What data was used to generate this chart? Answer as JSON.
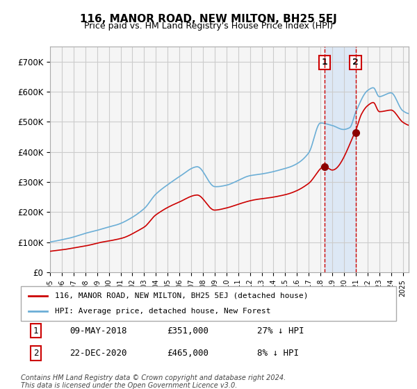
{
  "title": "116, MANOR ROAD, NEW MILTON, BH25 5EJ",
  "subtitle": "Price paid vs. HM Land Registry's House Price Index (HPI)",
  "hpi_color": "#6baed6",
  "price_color": "#cc0000",
  "point_color": "#8b0000",
  "bg_color": "#ffffff",
  "plot_bg_color": "#f5f5f5",
  "grid_color": "#cccccc",
  "highlight_bg": "#dde8f5",
  "dashed_color": "#cc0000",
  "ylim": [
    0,
    750000
  ],
  "yticks": [
    0,
    100000,
    200000,
    300000,
    400000,
    500000,
    600000,
    700000
  ],
  "ytick_labels": [
    "£0",
    "£100K",
    "£200K",
    "£300K",
    "£400K",
    "£500K",
    "£600K",
    "£700K"
  ],
  "sale1_date_num": 2018.35,
  "sale1_price": 351000,
  "sale1_label": "1",
  "sale2_date_num": 2020.98,
  "sale2_price": 465000,
  "sale2_label": "2",
  "legend_line1": "116, MANOR ROAD, NEW MILTON, BH25 5EJ (detached house)",
  "legend_line2": "HPI: Average price, detached house, New Forest",
  "table_row1": [
    "1",
    "09-MAY-2018",
    "£351,000",
    "27% ↓ HPI"
  ],
  "table_row2": [
    "2",
    "22-DEC-2020",
    "£465,000",
    "8% ↓ HPI"
  ],
  "footer": "Contains HM Land Registry data © Crown copyright and database right 2024.\nThis data is licensed under the Open Government Licence v3.0.",
  "xstart": 1995.0,
  "xend": 2025.5
}
